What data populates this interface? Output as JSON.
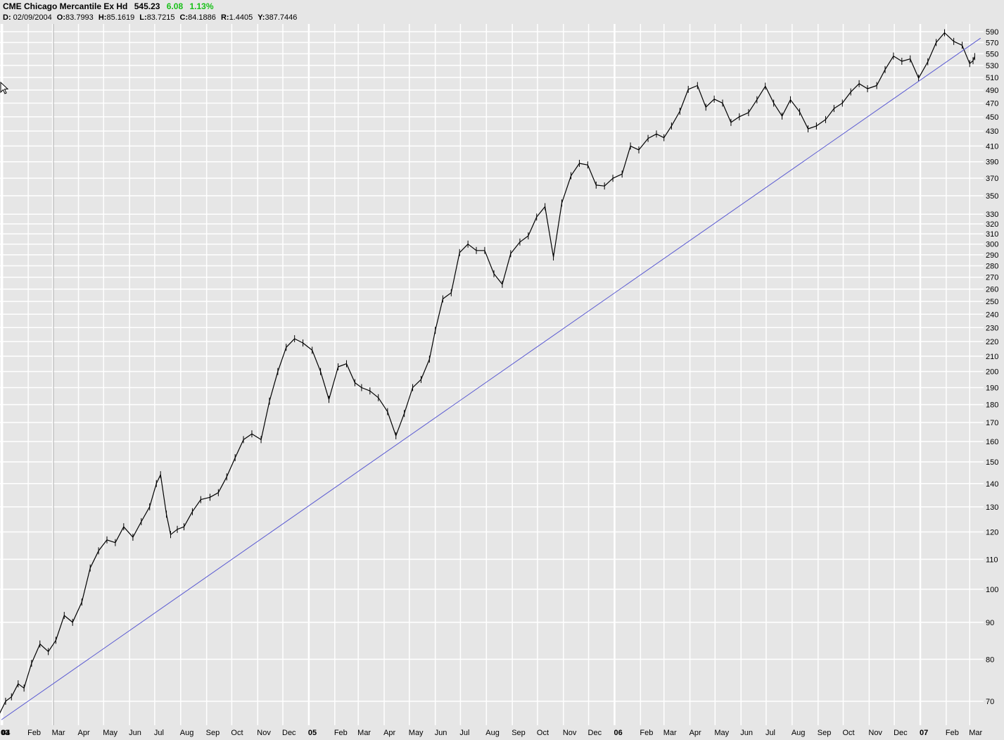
{
  "header": {
    "symbol_name": "CME Chicago Mercantile Ex Hd",
    "last_price": "545.23",
    "change": "6.08",
    "change_pct": "1.13%",
    "date_label": "D:",
    "date": "02/09/2004",
    "open_label": "O:",
    "open": "83.7993",
    "high_label": "H:",
    "high": "85.1619",
    "low_label": "L:",
    "low": "83.7215",
    "close_label": "C:",
    "close": "84.1886",
    "range_label": "R:",
    "range": "1.4405",
    "y_label": "Y:",
    "y_value": "387.7446"
  },
  "colors": {
    "background": "#e6e6e6",
    "grid": "#ffffff",
    "price_bars": "#000000",
    "trendline": "#5a5ad2",
    "change_up": "#18c018"
  },
  "icons": [
    "mouse-pointer-icon"
  ],
  "chart_data": {
    "type": "line",
    "scale": "log",
    "grid": true,
    "y_tick_labels": [
      "590",
      "570",
      "550",
      "530",
      "510",
      "490",
      "470",
      "450",
      "430",
      "410",
      "390",
      "370",
      "350",
      "330",
      "320",
      "310",
      "300",
      "290",
      "280",
      "270",
      "260",
      "250",
      "240",
      "230",
      "220",
      "210",
      "200",
      "190",
      "180",
      "170",
      "160",
      "150",
      "140",
      "130",
      "120",
      "110",
      "100",
      "90",
      "80",
      "70"
    ],
    "x_tick_labels": [
      {
        "label": "03",
        "date": "2003-12-31",
        "year": true
      },
      {
        "label": "04",
        "date": "2004-01-01",
        "year": true
      },
      {
        "label": "Feb",
        "date": "2004-02-01"
      },
      {
        "label": "Mar",
        "date": "2004-03-01"
      },
      {
        "label": "Apr",
        "date": "2004-04-01"
      },
      {
        "label": "May",
        "date": "2004-05-01"
      },
      {
        "label": "Jun",
        "date": "2004-06-01"
      },
      {
        "label": "Jul",
        "date": "2004-07-01"
      },
      {
        "label": "Aug",
        "date": "2004-08-01"
      },
      {
        "label": "Sep",
        "date": "2004-09-01"
      },
      {
        "label": "Oct",
        "date": "2004-10-01"
      },
      {
        "label": "Nov",
        "date": "2004-11-01"
      },
      {
        "label": "Dec",
        "date": "2004-12-01"
      },
      {
        "label": "05",
        "date": "2005-01-01",
        "year": true
      },
      {
        "label": "Feb",
        "date": "2005-02-01"
      },
      {
        "label": "Mar",
        "date": "2005-03-01"
      },
      {
        "label": "Apr",
        "date": "2005-04-01"
      },
      {
        "label": "May",
        "date": "2005-05-01"
      },
      {
        "label": "Jun",
        "date": "2005-06-01"
      },
      {
        "label": "Jul",
        "date": "2005-07-01"
      },
      {
        "label": "Aug",
        "date": "2005-08-01"
      },
      {
        "label": "Sep",
        "date": "2005-09-01"
      },
      {
        "label": "Oct",
        "date": "2005-10-01"
      },
      {
        "label": "Nov",
        "date": "2005-11-01"
      },
      {
        "label": "Dec",
        "date": "2005-12-01"
      },
      {
        "label": "06",
        "date": "2006-01-01",
        "year": true
      },
      {
        "label": "Feb",
        "date": "2006-02-01"
      },
      {
        "label": "Mar",
        "date": "2006-03-01"
      },
      {
        "label": "Apr",
        "date": "2006-04-01"
      },
      {
        "label": "May",
        "date": "2006-05-01"
      },
      {
        "label": "Jun",
        "date": "2006-06-01"
      },
      {
        "label": "Jul",
        "date": "2006-07-01"
      },
      {
        "label": "Aug",
        "date": "2006-08-01"
      },
      {
        "label": "Sep",
        "date": "2006-09-01"
      },
      {
        "label": "Oct",
        "date": "2006-10-01"
      },
      {
        "label": "Nov",
        "date": "2006-11-01"
      },
      {
        "label": "Dec",
        "date": "2006-12-01"
      },
      {
        "label": "07",
        "date": "2007-01-01",
        "year": true
      },
      {
        "label": "Feb",
        "date": "2007-02-01"
      },
      {
        "label": "Mar",
        "date": "2007-03-01"
      }
    ],
    "series": [
      {
        "type": "line",
        "x": [
          "2003-12-20",
          "2003-12-28",
          "2004-01-05",
          "2004-01-12",
          "2004-01-20",
          "2004-01-27",
          "2004-02-05",
          "2004-02-15",
          "2004-02-25",
          "2004-03-05",
          "2004-03-15",
          "2004-03-25",
          "2004-04-05",
          "2004-04-15",
          "2004-04-25",
          "2004-05-05",
          "2004-05-15",
          "2004-05-25",
          "2004-06-05",
          "2004-06-15",
          "2004-06-25",
          "2004-07-03",
          "2004-07-08",
          "2004-07-15",
          "2004-07-20",
          "2004-07-28",
          "2004-08-05",
          "2004-08-15",
          "2004-08-25",
          "2004-09-05",
          "2004-09-15",
          "2004-09-25",
          "2004-10-05",
          "2004-10-15",
          "2004-10-25",
          "2004-11-05",
          "2004-11-15",
          "2004-11-25",
          "2004-12-05",
          "2004-12-15",
          "2004-12-25",
          "2005-01-05",
          "2005-01-15",
          "2005-01-25",
          "2005-02-05",
          "2005-02-15",
          "2005-02-25",
          "2005-03-05",
          "2005-03-15",
          "2005-03-25",
          "2005-04-05",
          "2005-04-15",
          "2005-04-25",
          "2005-05-05",
          "2005-05-15",
          "2005-05-25",
          "2005-06-01",
          "2005-06-10",
          "2005-06-20",
          "2005-06-30",
          "2005-07-10",
          "2005-07-20",
          "2005-07-30",
          "2005-08-10",
          "2005-08-20",
          "2005-08-30",
          "2005-09-10",
          "2005-09-20",
          "2005-09-30",
          "2005-10-10",
          "2005-10-20",
          "2005-10-30",
          "2005-11-10",
          "2005-11-20",
          "2005-11-30",
          "2005-12-10",
          "2005-12-20",
          "2005-12-30",
          "2006-01-10",
          "2006-01-20",
          "2006-01-30",
          "2006-02-10",
          "2006-02-20",
          "2006-03-01",
          "2006-03-10",
          "2006-03-20",
          "2006-03-30",
          "2006-04-10",
          "2006-04-20",
          "2006-04-30",
          "2006-05-10",
          "2006-05-20",
          "2006-05-30",
          "2006-06-10",
          "2006-06-20",
          "2006-06-30",
          "2006-07-10",
          "2006-07-20",
          "2006-07-30",
          "2006-08-10",
          "2006-08-20",
          "2006-08-30",
          "2006-09-10",
          "2006-09-20",
          "2006-09-30",
          "2006-10-10",
          "2006-10-20",
          "2006-10-30",
          "2006-11-10",
          "2006-11-20",
          "2006-11-30",
          "2006-12-10",
          "2006-12-20",
          "2006-12-30",
          "2007-01-10",
          "2007-01-20",
          "2007-01-30",
          "2007-02-10",
          "2007-02-20",
          "2007-03-01",
          "2007-03-05",
          "2007-03-07"
        ],
        "values": [
          69,
          67,
          70,
          71,
          74,
          73,
          79,
          84,
          82,
          85,
          92,
          90,
          96,
          107,
          113,
          117,
          116,
          122,
          118,
          124,
          130,
          140,
          144,
          127,
          119,
          121,
          122,
          128,
          133,
          134,
          136,
          143,
          152,
          161,
          164,
          161,
          182,
          200,
          216,
          222,
          219,
          214,
          200,
          183,
          203,
          205,
          193,
          190,
          188,
          184,
          176,
          163,
          175,
          190,
          195,
          208,
          228,
          252,
          257,
          292,
          300,
          294,
          294,
          273,
          264,
          291,
          302,
          308,
          327,
          338,
          288,
          342,
          373,
          388,
          386,
          362,
          361,
          370,
          375,
          410,
          405,
          420,
          426,
          421,
          437,
          458,
          491,
          497,
          464,
          476,
          470,
          442,
          450,
          456,
          475,
          496,
          470,
          451,
          475,
          457,
          433,
          437,
          446,
          462,
          470,
          487,
          500,
          492,
          497,
          523,
          546,
          537,
          541,
          509,
          536,
          570,
          588,
          572,
          565,
          533,
          538,
          545
        ]
      },
      {
        "type": "trendline",
        "x": [
          "2003-12-31",
          "2007-03-14"
        ],
        "values": [
          66,
          578
        ]
      }
    ]
  }
}
